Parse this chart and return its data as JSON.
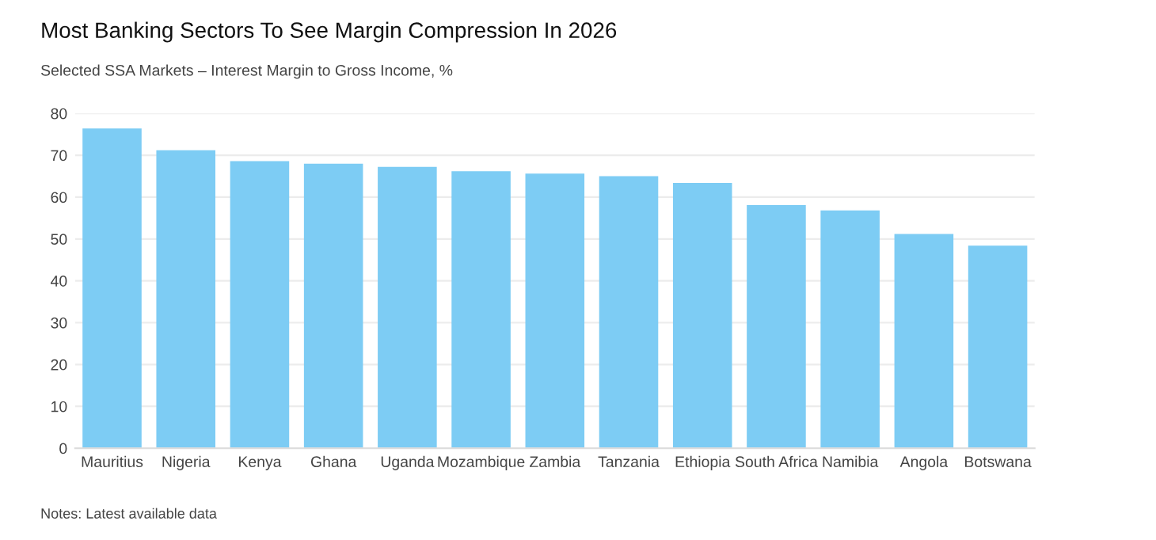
{
  "chart_data": {
    "type": "bar",
    "title": "Most Banking Sectors To See Margin Compression In 2026",
    "subtitle": "Selected SSA Markets – Interest Margin to Gross Income, %",
    "categories": [
      "Mauritius",
      "Nigeria",
      "Kenya",
      "Ghana",
      "Uganda",
      "Mozambique",
      "Zambia",
      "Tanzania",
      "Ethiopia",
      "South Africa",
      "Namibia",
      "Angola",
      "Botswana"
    ],
    "values": [
      76.4,
      71.2,
      68.6,
      68.0,
      67.2,
      66.2,
      65.6,
      65.0,
      63.4,
      58.1,
      56.8,
      51.2,
      48.4
    ],
    "color": "#7dccf4",
    "ylim": [
      0,
      80
    ],
    "yticks": [
      0,
      10,
      20,
      30,
      40,
      50,
      60,
      70,
      80
    ],
    "grid": "y",
    "annotations": [
      "Notes: Latest available data"
    ]
  }
}
